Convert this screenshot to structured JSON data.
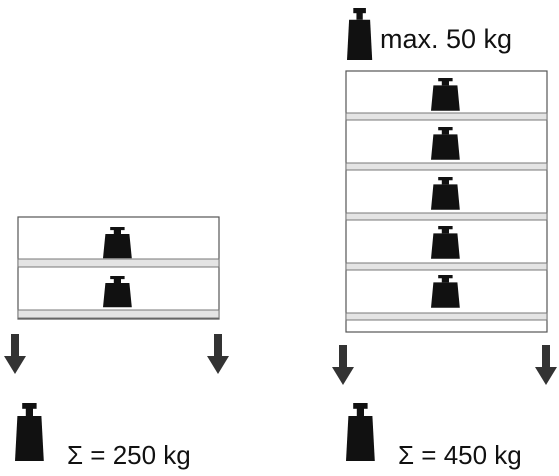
{
  "max_weight_label": "max. 50 kg",
  "left_stack": {
    "level_count": 2,
    "total_label": "Σ = 250 kg"
  },
  "right_stack": {
    "level_count": 5,
    "total_label": "Σ = 450 kg"
  },
  "icons": {
    "weight": "weight-icon",
    "arrow": "arrow-down-icon"
  },
  "colors": {
    "weight": "#111111",
    "arrow": "#333333",
    "frame": "#555555",
    "shelf_band": "#e4e4e4"
  }
}
